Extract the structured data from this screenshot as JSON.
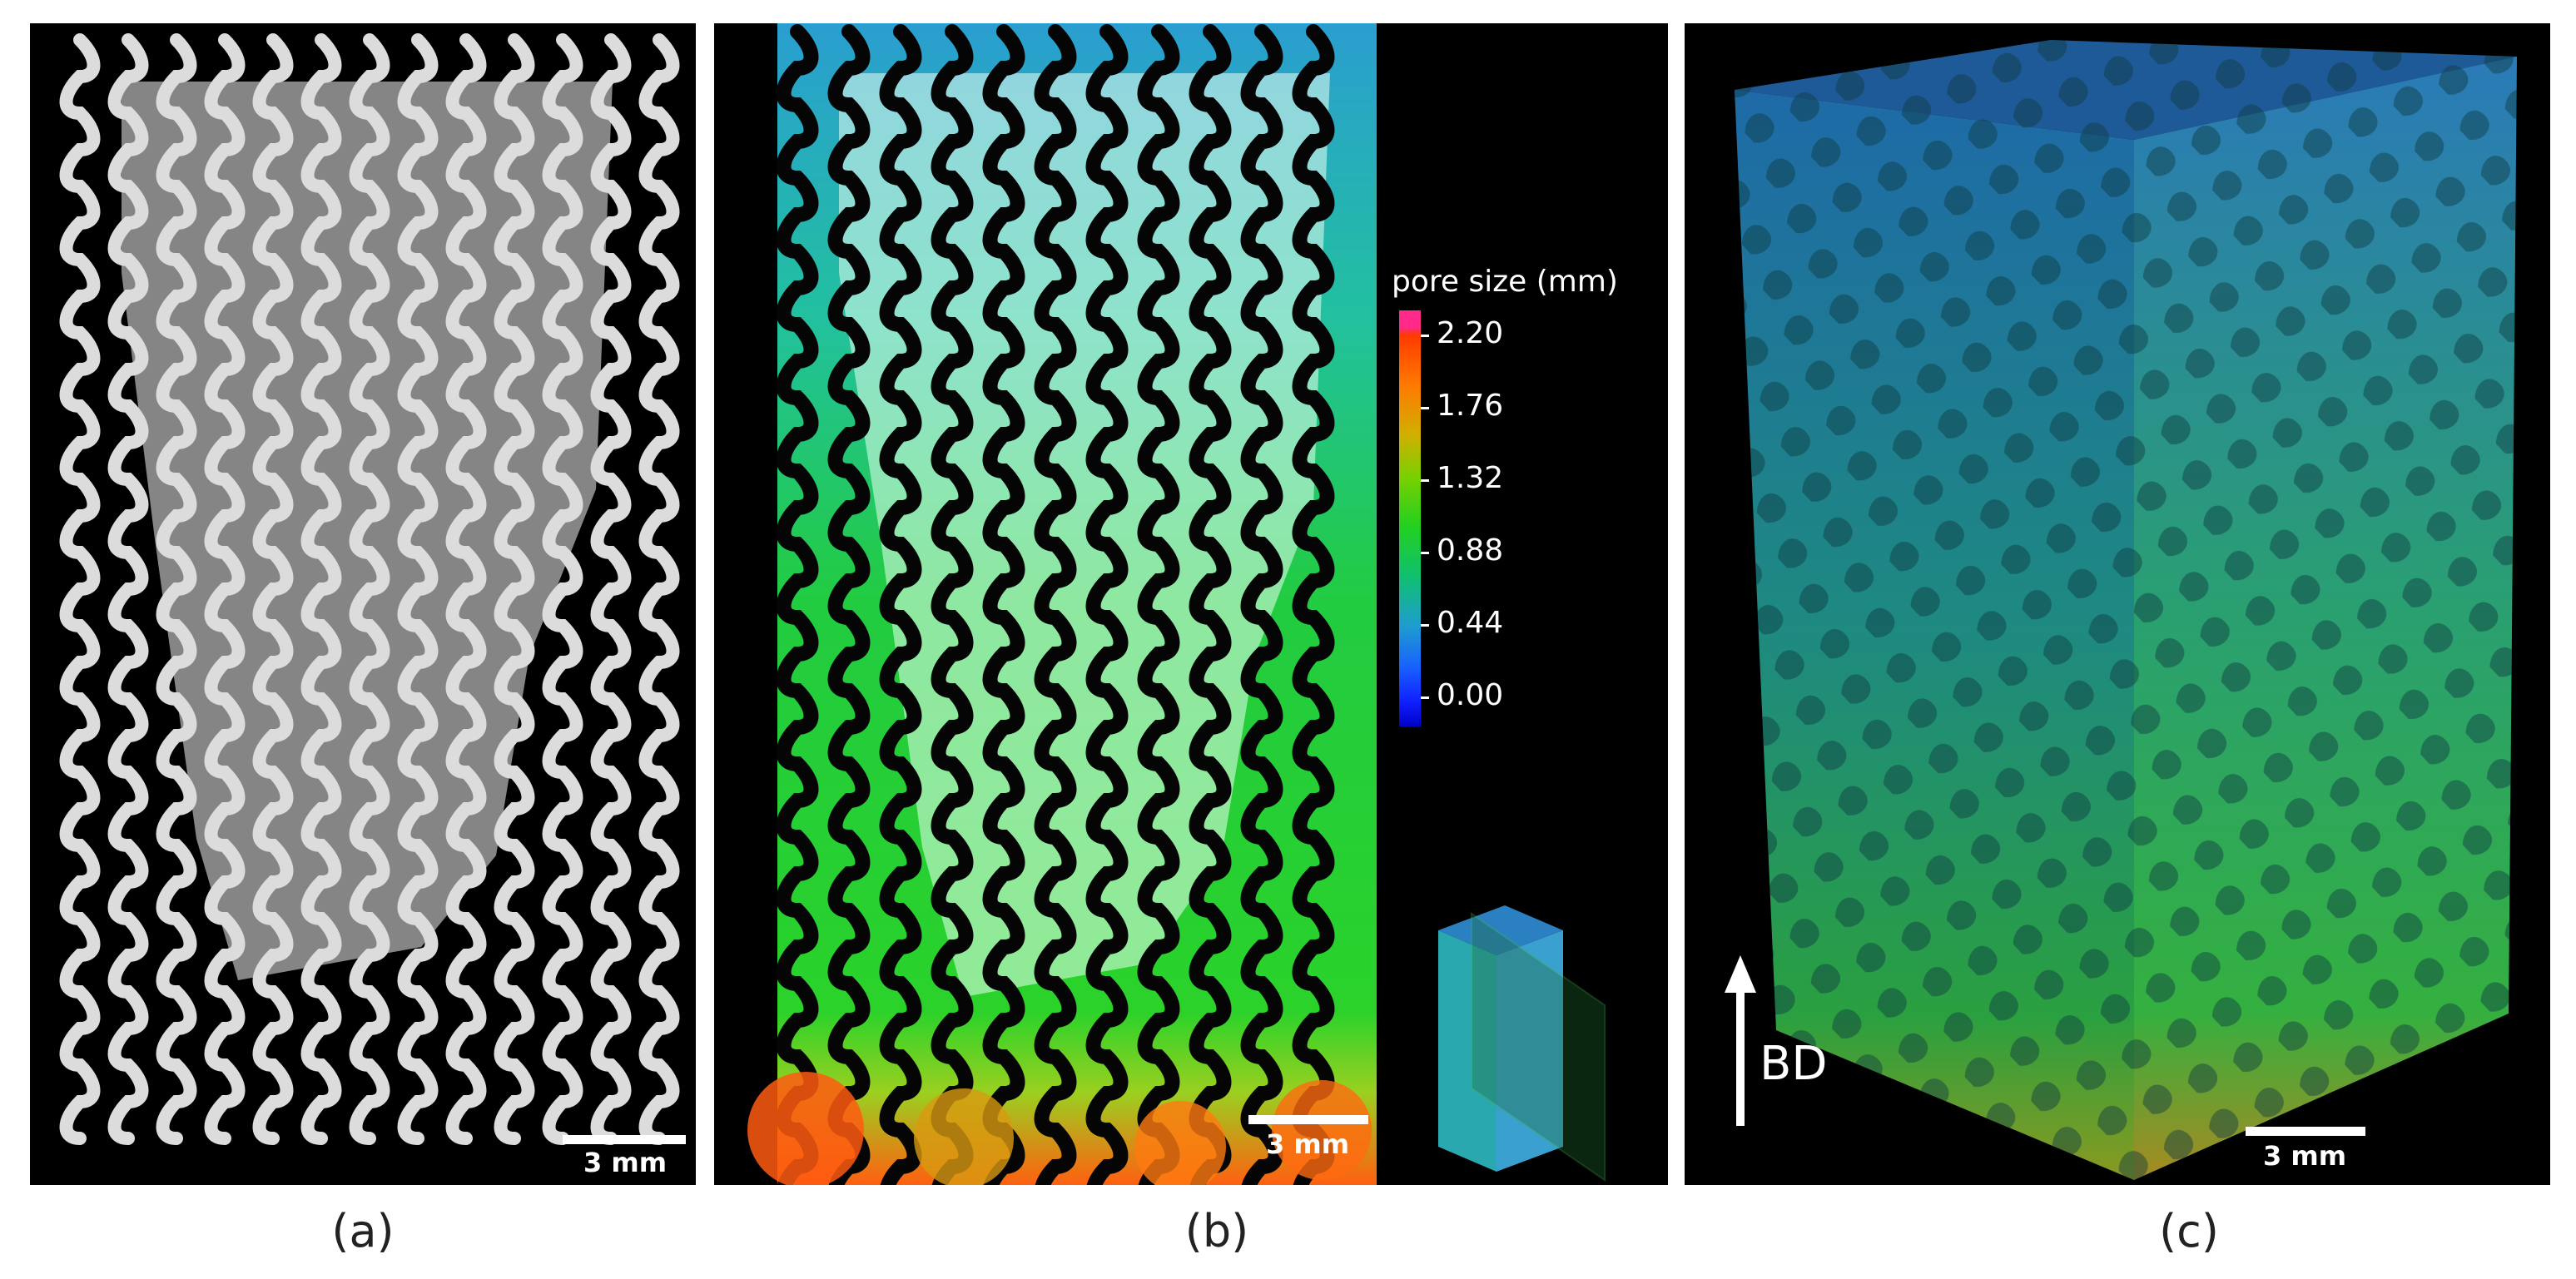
{
  "panels": {
    "a": {
      "caption": "(a)",
      "scale_label": "3 mm"
    },
    "b": {
      "caption": "(b)",
      "scale_label": "3 mm",
      "colorbar": {
        "title": "pore size (mm)",
        "ticks": [
          "2.20",
          "1.76",
          "1.32",
          "0.88",
          "0.44",
          "0.00"
        ]
      }
    },
    "c": {
      "caption": "(c)",
      "scale_label": "3 mm",
      "arrow_label": "BD"
    }
  },
  "colors": {
    "background": "#000000",
    "strut_gray": "#d8d8d8",
    "fill_gray": "#8a8a8a",
    "pore_green": "#28d23c",
    "pore_blue": "#1e9cd0",
    "pore_orange": "#ff6a10"
  }
}
